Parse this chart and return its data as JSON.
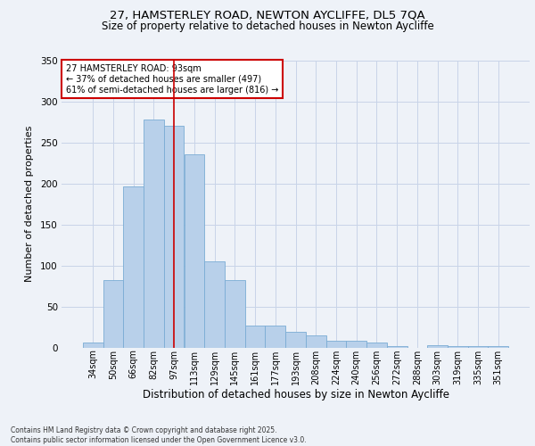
{
  "title_line1": "27, HAMSTERLEY ROAD, NEWTON AYCLIFFE, DL5 7QA",
  "title_line2": "Size of property relative to detached houses in Newton Aycliffe",
  "xlabel": "Distribution of detached houses by size in Newton Aycliffe",
  "ylabel": "Number of detached properties",
  "categories": [
    "34sqm",
    "50sqm",
    "66sqm",
    "82sqm",
    "97sqm",
    "113sqm",
    "129sqm",
    "145sqm",
    "161sqm",
    "177sqm",
    "193sqm",
    "208sqm",
    "224sqm",
    "240sqm",
    "256sqm",
    "272sqm",
    "288sqm",
    "303sqm",
    "319sqm",
    "335sqm",
    "351sqm"
  ],
  "values": [
    7,
    83,
    196,
    278,
    270,
    235,
    105,
    83,
    27,
    27,
    19,
    15,
    9,
    9,
    6,
    2,
    0,
    3,
    2,
    2,
    2
  ],
  "bar_color": "#b8d0ea",
  "bar_edge_color": "#7aacd4",
  "grid_color": "#c8d4e8",
  "bg_color": "#eef2f8",
  "vline_x": 4,
  "vline_color": "#cc0000",
  "annotation_text_line1": "27 HAMSTERLEY ROAD: 93sqm",
  "annotation_text_line2": "← 37% of detached houses are smaller (497)",
  "annotation_text_line3": "61% of semi-detached houses are larger (816) →",
  "annotation_box_color": "#cc0000",
  "annotation_bg_color": "#ffffff",
  "footer_line1": "Contains HM Land Registry data © Crown copyright and database right 2025.",
  "footer_line2": "Contains public sector information licensed under the Open Government Licence v3.0.",
  "ylim": [
    0,
    350
  ],
  "yticks": [
    0,
    50,
    100,
    150,
    200,
    250,
    300,
    350
  ],
  "title1_fontsize": 9.5,
  "title2_fontsize": 8.5,
  "ylabel_fontsize": 8,
  "xlabel_fontsize": 8.5,
  "tick_fontsize": 7,
  "ann_fontsize": 7,
  "footer_fontsize": 5.5
}
